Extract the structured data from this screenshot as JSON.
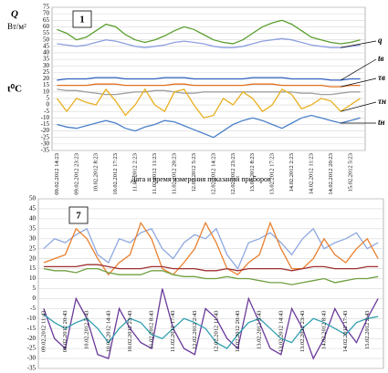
{
  "chart_data": [
    {
      "type": "line",
      "panel_label": "1",
      "ylabel": "Q",
      "ylabel_unit": "Вт/м²",
      "temp_label": "t⁰C",
      "xlabel": "Дата и время измерения показаний приборов",
      "ylim": [
        -35,
        75
      ],
      "yticks": [
        -35,
        -30,
        -25,
        -20,
        -15,
        -10,
        -5,
        0,
        5,
        10,
        15,
        20,
        25,
        30,
        35,
        40,
        45,
        50,
        55,
        60,
        65,
        70,
        75
      ],
      "grid": true,
      "categories": [
        "09.02.2012 14:23",
        null,
        "09.02.2012 23:23",
        null,
        "10.02.2012 8:23",
        null,
        "10.02.2012 17:23",
        null,
        "11.02.2012 2:23",
        null,
        "11.02.2012 11:23",
        null,
        "11.02.2012 20:23",
        null,
        "12.02.2012 5:23",
        null,
        "12.02.2012 14:23",
        null,
        "12.02.2012 23:23",
        null,
        "13.02.2012 8:23",
        null,
        "13.02.2012 17:23",
        null,
        "14.02.2012 2:23",
        null,
        "14.02.2012 11:23",
        null,
        "14.02.2012 20:23",
        null,
        "15.02.2012 5:23",
        null
      ],
      "series": [
        {
          "color": "#5a9e2f",
          "values": [
            58,
            55,
            50,
            52,
            57,
            62,
            60,
            54,
            50,
            48,
            50,
            53,
            57,
            60,
            58,
            54,
            50,
            48,
            47,
            50,
            55,
            60,
            63,
            65,
            62,
            57,
            52,
            50,
            48,
            47,
            48,
            50
          ]
        },
        {
          "name": "q",
          "color": "#8ea0e0",
          "values": [
            47,
            46,
            45,
            46,
            48,
            50,
            49,
            47,
            45,
            44,
            45,
            46,
            48,
            49,
            48,
            47,
            45,
            44,
            44,
            45,
            47,
            49,
            50,
            51,
            50,
            48,
            46,
            45,
            44,
            44,
            45,
            46
          ]
        },
        {
          "name": "tв",
          "color": "#3060c0",
          "values": [
            19,
            20,
            20,
            20,
            21,
            21,
            21,
            20,
            20,
            20,
            20,
            21,
            21,
            21,
            20,
            20,
            20,
            20,
            20,
            20,
            21,
            21,
            21,
            21,
            20,
            20,
            20,
            20,
            19,
            19,
            20,
            20
          ]
        },
        {
          "name": "τв",
          "color": "#e07020",
          "values": [
            15,
            15,
            15,
            15,
            16,
            16,
            16,
            15,
            15,
            15,
            15,
            15,
            16,
            16,
            15,
            15,
            15,
            15,
            15,
            15,
            16,
            16,
            16,
            15,
            15,
            15,
            15,
            15,
            14,
            14,
            15,
            15
          ]
        },
        {
          "color": "#a0a0a0",
          "values": [
            12,
            11,
            11,
            10,
            9,
            8,
            8,
            9,
            10,
            10,
            11,
            11,
            10,
            9,
            9,
            10,
            10,
            10,
            10,
            10,
            10,
            10,
            10,
            10,
            10,
            9,
            9,
            8,
            8,
            9,
            10,
            10
          ]
        },
        {
          "name": "τн",
          "color": "#e8b020",
          "values": [
            5,
            -5,
            5,
            2,
            0,
            12,
            3,
            -8,
            0,
            12,
            0,
            -5,
            10,
            12,
            0,
            -10,
            -8,
            5,
            0,
            10,
            5,
            -5,
            0,
            12,
            8,
            -3,
            0,
            5,
            3,
            -5,
            0,
            5
          ]
        },
        {
          "name": "tн",
          "color": "#4a80c8",
          "values": [
            -15,
            -17,
            -18,
            -16,
            -14,
            -12,
            -14,
            -18,
            -20,
            -17,
            -15,
            -12,
            -13,
            -16,
            -19,
            -22,
            -25,
            -20,
            -15,
            -12,
            -10,
            -12,
            -15,
            -18,
            -14,
            -10,
            -8,
            -10,
            -12,
            -14,
            -12,
            -10
          ]
        }
      ]
    },
    {
      "type": "line",
      "panel_label": "7",
      "ylim": [
        -35,
        50
      ],
      "yticks": [
        -35,
        -30,
        -25,
        -20,
        -15,
        -10,
        -5,
        0,
        5,
        10,
        15,
        20,
        25,
        30,
        35,
        40,
        45,
        50
      ],
      "grid": true,
      "categories": [
        "09.02.2012 11:43",
        null,
        "09.02.2012 20:43",
        null,
        "10.02.2012 5:43",
        null,
        "10.02.2012 14:43",
        null,
        "10.02.2012 23:43",
        null,
        "11.02.2012 8:43",
        null,
        "11.02.2012 17:43",
        null,
        "12.02.2012 2:43",
        null,
        "12.02.2012 11:43",
        null,
        "12.02.2012 20:43",
        null,
        "13.02.2012 5:43",
        null,
        "13.02.2012 14:43",
        null,
        "13.02.2012 23:43",
        null,
        "14.02.2012 8:43",
        null,
        "14.02.2012 17:43",
        null,
        "15.02.2012 2:43",
        null
      ],
      "series": [
        {
          "color": "#8ea8e0",
          "values": [
            25,
            30,
            28,
            32,
            35,
            22,
            18,
            30,
            28,
            33,
            35,
            25,
            20,
            28,
            32,
            30,
            35,
            22,
            15,
            28,
            30,
            33,
            28,
            22,
            30,
            35,
            25,
            28,
            30,
            33,
            25,
            28
          ]
        },
        {
          "color": "#e88030",
          "values": [
            18,
            20,
            22,
            35,
            30,
            20,
            12,
            18,
            22,
            38,
            30,
            15,
            12,
            18,
            25,
            38,
            28,
            15,
            12,
            18,
            22,
            38,
            25,
            15,
            15,
            20,
            30,
            22,
            18,
            25,
            30,
            20
          ]
        },
        {
          "color": "#70a040",
          "values": [
            15,
            14,
            14,
            13,
            15,
            15,
            13,
            12,
            12,
            12,
            14,
            14,
            12,
            11,
            11,
            10,
            10,
            11,
            10,
            10,
            9,
            8,
            8,
            7,
            8,
            9,
            10,
            8,
            9,
            10,
            10,
            11
          ]
        },
        {
          "color": "#a03030",
          "values": [
            16,
            16,
            16,
            16,
            17,
            17,
            16,
            15,
            15,
            15,
            16,
            16,
            15,
            15,
            15,
            14,
            14,
            15,
            14,
            15,
            15,
            15,
            15,
            14,
            15,
            16,
            16,
            15,
            15,
            15,
            16,
            16
          ]
        },
        {
          "color": "#6a3a9a",
          "values": [
            -5,
            -20,
            -25,
            0,
            -10,
            -28,
            -30,
            -5,
            -15,
            -22,
            -25,
            5,
            -15,
            -25,
            -28,
            -5,
            -10,
            -20,
            -25,
            0,
            -12,
            -25,
            -28,
            -5,
            -15,
            -30,
            -20,
            -5,
            -15,
            -22,
            -10,
            0
          ]
        },
        {
          "color": "#30a0b0",
          "values": [
            -8,
            -12,
            -15,
            -12,
            -10,
            -15,
            -22,
            -15,
            -10,
            -12,
            -18,
            -20,
            -15,
            -10,
            -12,
            -15,
            -22,
            -25,
            -18,
            -12,
            -10,
            -15,
            -20,
            -22,
            -15,
            -10,
            -12,
            -15,
            -18,
            -12,
            -10,
            -9
          ]
        }
      ]
    }
  ]
}
